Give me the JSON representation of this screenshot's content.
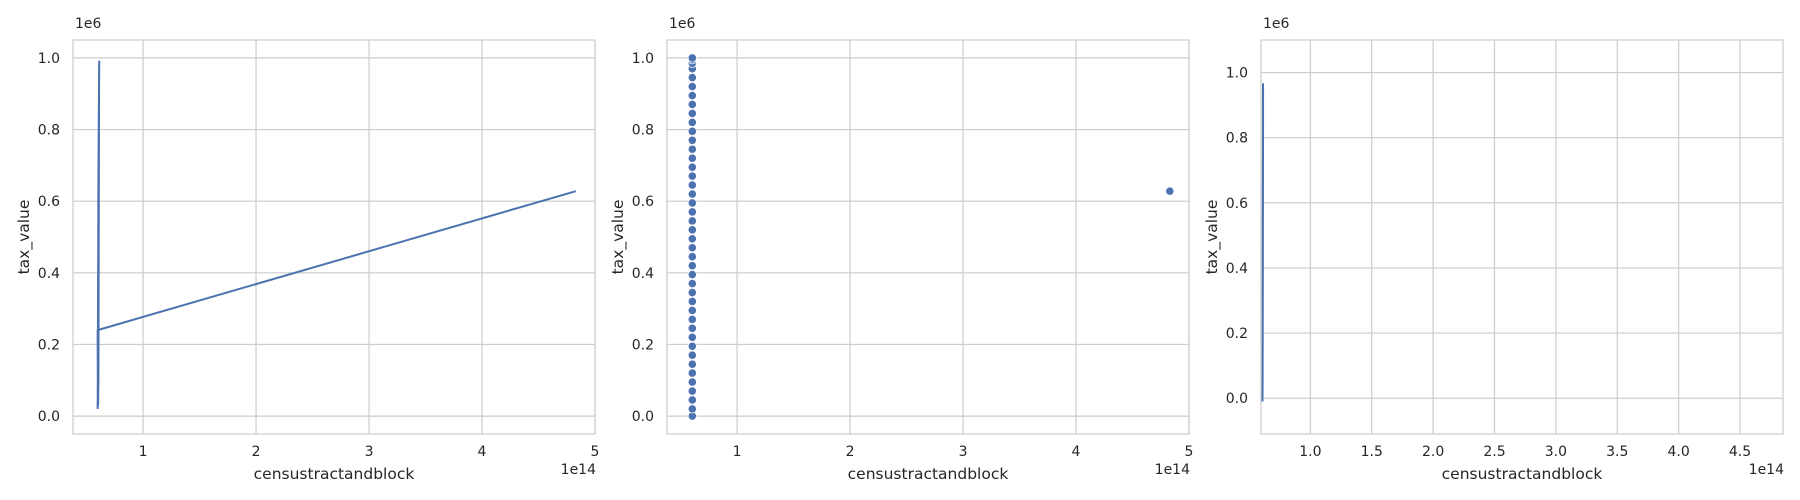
{
  "chart_data": [
    {
      "type": "line",
      "title": "",
      "xlabel": "censustractandblock",
      "ylabel": "tax_value",
      "x_offset": "1e14",
      "y_offset": "1e6",
      "xlim": [
        0.38,
        5.0
      ],
      "ylim": [
        -0.05,
        1.05
      ],
      "x_ticks": [
        {
          "value": 1,
          "label": "1"
        },
        {
          "value": 2,
          "label": "2"
        },
        {
          "value": 3,
          "label": "3"
        },
        {
          "value": 4,
          "label": "4"
        },
        {
          "value": 5,
          "label": "5"
        }
      ],
      "y_ticks": [
        {
          "value": 0,
          "label": "0.0"
        },
        {
          "value": 0.2,
          "label": "0.2"
        },
        {
          "value": 0.4,
          "label": "0.4"
        },
        {
          "value": 0.6,
          "label": "0.6"
        },
        {
          "value": 0.8,
          "label": "0.8"
        },
        {
          "value": 1.0,
          "label": "1.0"
        }
      ],
      "grid": true,
      "color": "#4c72b0",
      "series": [
        {
          "x": [
            0.598,
            0.599,
            0.6,
            0.601,
            0.603,
            0.604,
            0.606,
            0.608,
            0.61,
            0.612,
            0.611,
            0.607,
            0.605,
            0.602,
            0.6,
            0.598,
            4.83
          ],
          "y": [
            0.02,
            0.05,
            0.15,
            0.3,
            0.45,
            0.6,
            0.72,
            0.82,
            0.9,
            0.99,
            0.98,
            0.4,
            0.1,
            0.03,
            0.08,
            0.24,
            0.628
          ]
        }
      ]
    },
    {
      "type": "scatter",
      "title": "",
      "xlabel": "censustractandblock",
      "ylabel": "tax_value",
      "x_offset": "1e14",
      "y_offset": "1e6",
      "xlim": [
        0.38,
        5.0
      ],
      "ylim": [
        -0.05,
        1.05
      ],
      "x_ticks": [
        {
          "value": 1,
          "label": "1"
        },
        {
          "value": 2,
          "label": "2"
        },
        {
          "value": 3,
          "label": "3"
        },
        {
          "value": 4,
          "label": "4"
        },
        {
          "value": 5,
          "label": "5"
        }
      ],
      "y_ticks": [
        {
          "value": 0,
          "label": "0.0"
        },
        {
          "value": 0.2,
          "label": "0.2"
        },
        {
          "value": 0.4,
          "label": "0.4"
        },
        {
          "value": 0.6,
          "label": "0.6"
        },
        {
          "value": 0.8,
          "label": "0.8"
        },
        {
          "value": 1.0,
          "label": "1.0"
        }
      ],
      "grid": true,
      "color": "#4c72b0",
      "points": {
        "x": [
          0.604,
          0.604,
          0.604,
          0.604,
          0.604,
          0.604,
          0.604,
          0.604,
          0.604,
          0.604,
          0.604,
          0.604,
          0.604,
          0.604,
          0.604,
          0.604,
          0.604,
          0.604,
          0.604,
          0.604,
          0.604,
          0.604,
          0.604,
          0.604,
          0.604,
          0.604,
          0.604,
          0.604,
          0.604,
          0.604,
          0.604,
          0.604,
          0.604,
          0.604,
          0.604,
          0.604,
          0.604,
          0.604,
          0.604,
          0.604,
          0.604,
          0.604,
          0.604,
          4.83
        ],
        "y": [
          0.0,
          0.02,
          0.045,
          0.07,
          0.095,
          0.12,
          0.145,
          0.17,
          0.195,
          0.22,
          0.245,
          0.27,
          0.295,
          0.32,
          0.345,
          0.37,
          0.395,
          0.42,
          0.445,
          0.47,
          0.495,
          0.52,
          0.545,
          0.57,
          0.595,
          0.62,
          0.645,
          0.67,
          0.695,
          0.72,
          0.745,
          0.77,
          0.795,
          0.82,
          0.845,
          0.87,
          0.895,
          0.92,
          0.945,
          0.97,
          0.985,
          0.995,
          1.0,
          0.628
        ]
      }
    },
    {
      "type": "line",
      "title": "",
      "xlabel": "censustractandblock",
      "ylabel": "tax_value",
      "x_offset": "1e14",
      "y_offset": "1e6",
      "xlim": [
        0.598,
        4.85
      ],
      "ylim": [
        -0.11,
        1.1
      ],
      "x_ticks": [
        {
          "value": 1.0,
          "label": "1.0"
        },
        {
          "value": 1.5,
          "label": "1.5"
        },
        {
          "value": 2.0,
          "label": "2.0"
        },
        {
          "value": 2.5,
          "label": "2.5"
        },
        {
          "value": 3.0,
          "label": "3.0"
        },
        {
          "value": 3.5,
          "label": "3.5"
        },
        {
          "value": 4.0,
          "label": "4.0"
        },
        {
          "value": 4.5,
          "label": "4.5"
        }
      ],
      "y_ticks": [
        {
          "value": 0,
          "label": "0.0"
        },
        {
          "value": 0.2,
          "label": "0.2"
        },
        {
          "value": 0.4,
          "label": "0.4"
        },
        {
          "value": 0.6,
          "label": "0.6"
        },
        {
          "value": 0.8,
          "label": "0.8"
        },
        {
          "value": 1.0,
          "label": "1.0"
        }
      ],
      "grid": true,
      "color": "#4c72b0",
      "series": [
        {
          "x": [
            0.61,
            0.611,
            0.612,
            0.613,
            0.614,
            0.6145,
            0.6148,
            0.6145,
            0.614,
            0.6135,
            0.613,
            0.6125,
            0.612,
            0.6115,
            0.611,
            0.6105,
            0.61
          ],
          "y": [
            -0.01,
            0.05,
            0.2,
            0.4,
            0.6,
            0.8,
            0.95,
            0.965,
            0.9,
            0.72,
            0.71,
            0.6,
            0.4,
            0.2,
            0.05,
            0.01,
            -0.01
          ]
        }
      ]
    }
  ]
}
